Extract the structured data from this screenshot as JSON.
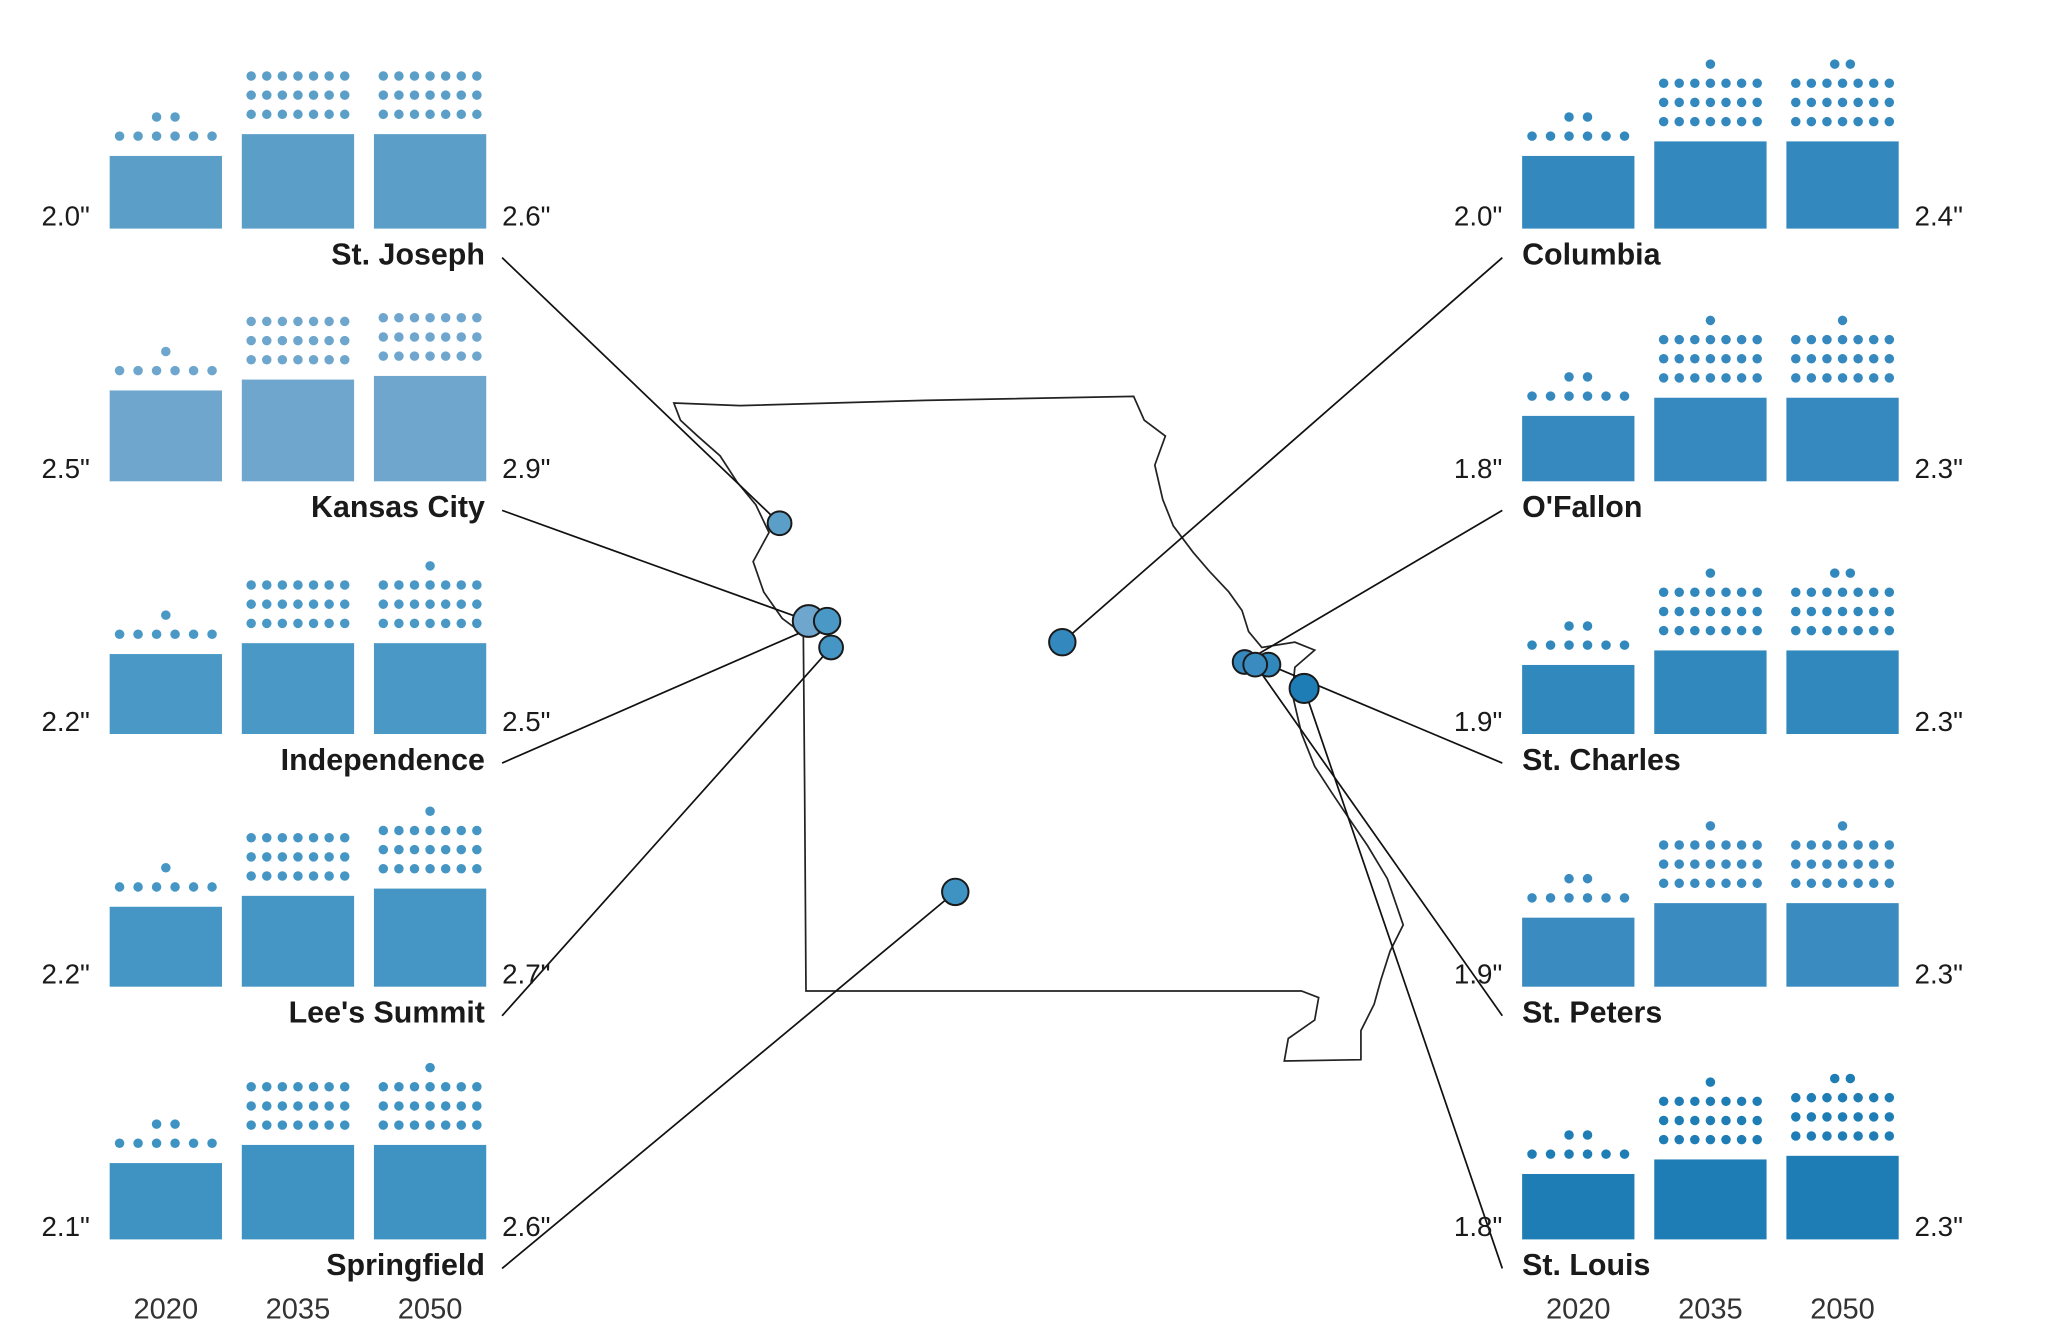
{
  "chart_data": {
    "type": "bar-map",
    "categories": [
      "2020",
      "2035",
      "2050"
    ],
    "panels": [
      {
        "name": "St. Joseph",
        "color": "#5b9fc8",
        "values": [
          2.0,
          2.6,
          2.6
        ],
        "value_labels": [
          "2.0\"",
          null,
          "2.6\""
        ],
        "dots": [
          8,
          21,
          21
        ]
      },
      {
        "name": "Kansas City",
        "color": "#6ea6cd",
        "values": [
          2.5,
          2.8,
          2.9
        ],
        "value_labels": [
          "2.5\"",
          null,
          "2.9\""
        ],
        "dots": [
          7,
          21,
          21
        ]
      },
      {
        "name": "Independence",
        "color": "#4a98c6",
        "values": [
          2.2,
          2.5,
          2.5
        ],
        "value_labels": [
          "2.2\"",
          null,
          "2.5\""
        ],
        "dots": [
          7,
          21,
          22
        ]
      },
      {
        "name": "Lee's Summit",
        "color": "#4596c4",
        "values": [
          2.2,
          2.5,
          2.7
        ],
        "value_labels": [
          "2.2\"",
          null,
          "2.7\""
        ],
        "dots": [
          7,
          21,
          22
        ]
      },
      {
        "name": "Springfield",
        "color": "#3f93c3",
        "values": [
          2.1,
          2.6,
          2.6
        ],
        "value_labels": [
          "2.1\"",
          null,
          "2.6\""
        ],
        "dots": [
          8,
          21,
          22
        ]
      },
      {
        "name": "Columbia",
        "color": "#3389be",
        "values": [
          2.0,
          2.4,
          2.4
        ],
        "value_labels": [
          "2.0\"",
          null,
          "2.4\""
        ],
        "dots": [
          8,
          22,
          23
        ]
      },
      {
        "name": "O'Fallon",
        "color": "#3589bf",
        "values": [
          1.8,
          2.3,
          2.3
        ],
        "value_labels": [
          "1.8\"",
          null,
          "2.3\""
        ],
        "dots": [
          8,
          22,
          22
        ]
      },
      {
        "name": "St. Charles",
        "color": "#3188bd",
        "values": [
          1.9,
          2.3,
          2.3
        ],
        "value_labels": [
          "1.9\"",
          null,
          "2.3\""
        ],
        "dots": [
          8,
          22,
          23
        ]
      },
      {
        "name": "St. Peters",
        "color": "#3a8cc0",
        "values": [
          1.9,
          2.3,
          2.3
        ],
        "value_labels": [
          "1.9\"",
          null,
          "2.3\""
        ],
        "dots": [
          8,
          22,
          22
        ]
      },
      {
        "name": "St. Louis",
        "color": "#1f7db5",
        "values": [
          1.8,
          2.2,
          2.3
        ],
        "value_labels": [
          "1.8\"",
          null,
          "2.3\""
        ],
        "dots": [
          8,
          22,
          23
        ]
      }
    ]
  }
}
